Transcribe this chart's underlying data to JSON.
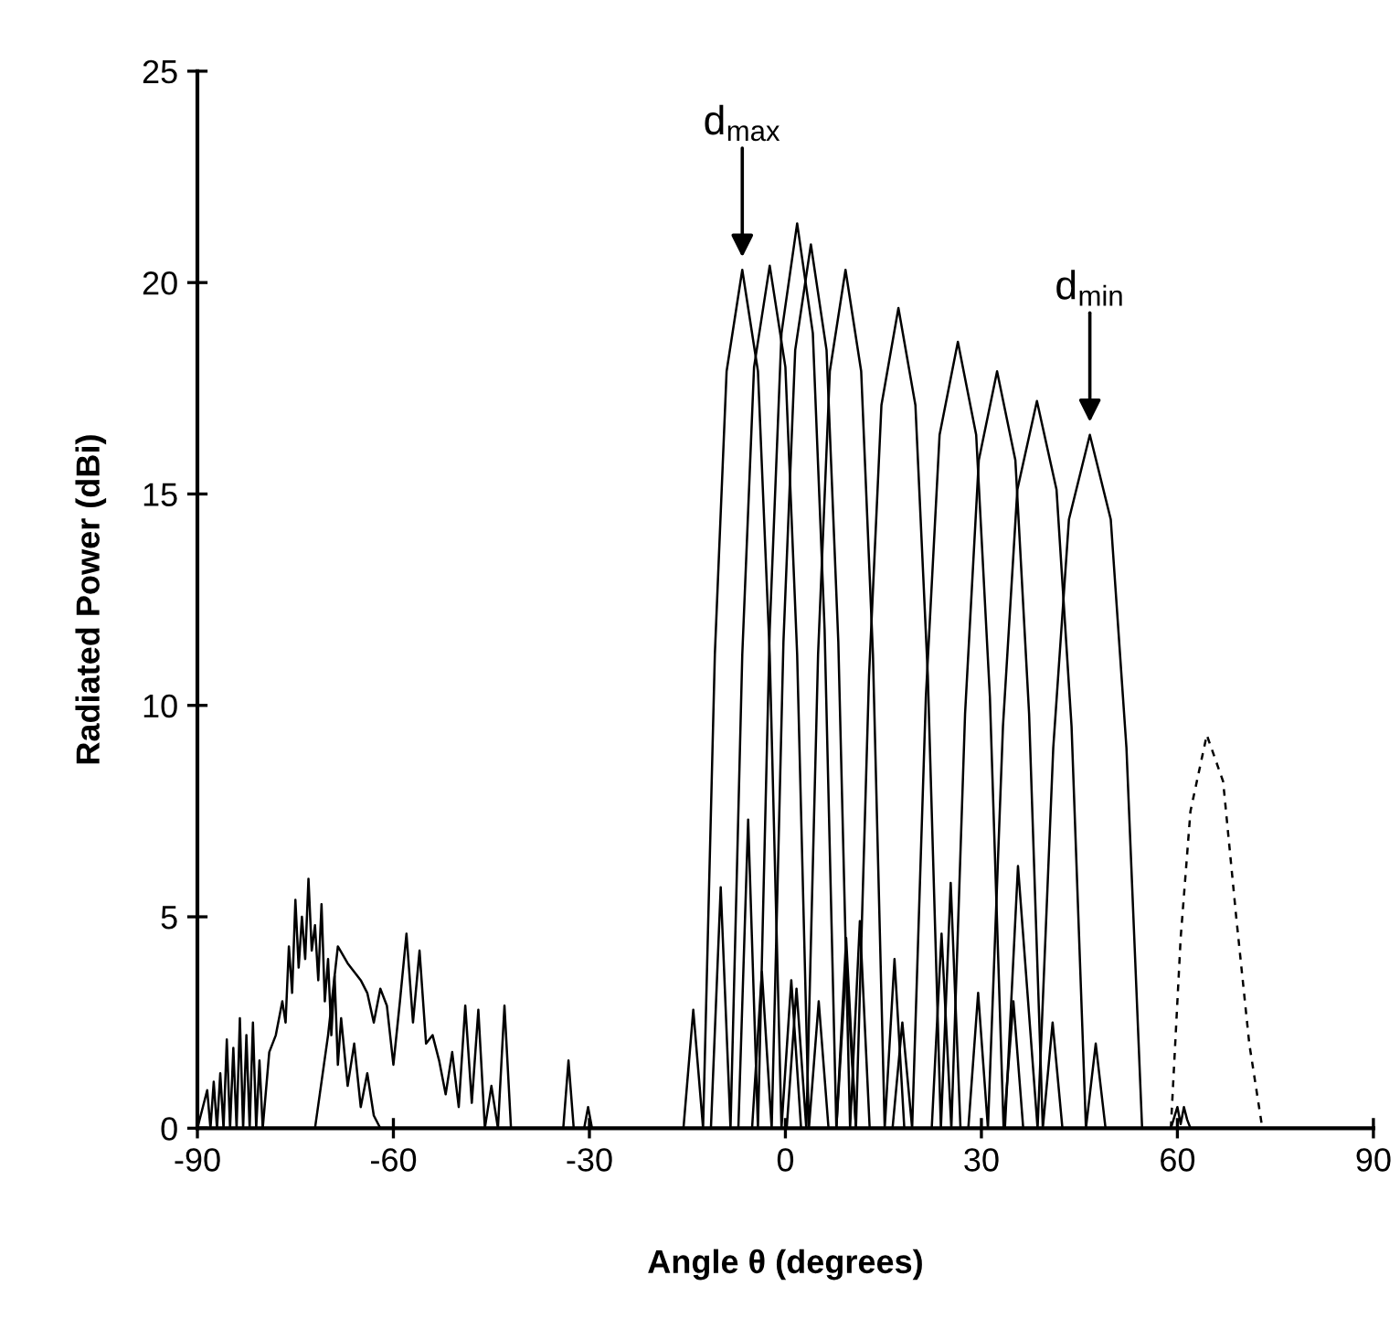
{
  "chart_data": {
    "type": "line",
    "xlabel": "Angle θ (degrees)",
    "ylabel": "Radiated Power (dBi)",
    "xlim": [
      -90,
      90
    ],
    "xticks": [
      -90,
      -60,
      -30,
      0,
      30,
      60,
      90
    ],
    "ylim": [
      0,
      25
    ],
    "yticks": [
      0,
      5,
      10,
      15,
      20,
      25
    ],
    "grid": false,
    "line_style": "solid",
    "annotations": [
      {
        "text": "d$_{max}$",
        "x": -6.6,
        "y": 20.3
      },
      {
        "text": "d$_{min}$",
        "x": 46.6,
        "y": 16.4
      }
    ],
    "series": [
      {
        "color": "#000000",
        "x": [
          -15.6,
          -14.1,
          -12.6,
          -10.8,
          -9.0,
          -6.6,
          -4.2,
          -2.4,
          -0.6,
          0.9,
          2.4
        ],
        "values": [
          0,
          2.8,
          0,
          11.2,
          17.9,
          20.3,
          17.9,
          11.2,
          0,
          3.5,
          0
        ]
      },
      {
        "color": "#000000",
        "x": [
          -11.4,
          -9.9,
          -8.4,
          -6.6,
          -4.8,
          -2.4,
          0.0,
          1.8,
          3.6,
          5.1,
          6.6
        ],
        "values": [
          0,
          5.7,
          0,
          11.2,
          18.0,
          20.4,
          18.0,
          11.2,
          0,
          3.0,
          0
        ]
      },
      {
        "color": "#000000",
        "x": [
          -7.2,
          -5.7,
          -4.2,
          -2.4,
          -0.6,
          1.8,
          4.2,
          6.0,
          7.8,
          9.3,
          10.8
        ],
        "values": [
          0,
          7.3,
          0,
          11.8,
          18.8,
          21.4,
          18.8,
          11.8,
          0,
          4.5,
          0
        ]
      },
      {
        "color": "#000000",
        "x": [
          -5.1,
          -3.6,
          -2.1,
          -0.3,
          1.5,
          3.9,
          6.3,
          8.1,
          9.9,
          11.4,
          12.9
        ],
        "values": [
          0,
          3.7,
          0,
          11.5,
          18.4,
          20.9,
          18.4,
          11.5,
          0,
          4.9,
          0
        ]
      },
      {
        "color": "#000000",
        "x": [
          0.2,
          1.7,
          3.2,
          5.0,
          6.8,
          9.2,
          11.6,
          13.4,
          15.2,
          16.7,
          18.2
        ],
        "values": [
          0,
          3.3,
          0,
          11.2,
          17.9,
          20.3,
          17.9,
          11.2,
          0,
          4.0,
          0
        ]
      },
      {
        "color": "#000000",
        "x": [
          7.8,
          9.3,
          10.8,
          12.8,
          14.7,
          17.3,
          19.9,
          21.8,
          23.8,
          25.3,
          26.8
        ],
        "values": [
          0,
          3.9,
          0,
          10.7,
          17.1,
          19.4,
          17.1,
          10.7,
          0,
          5.8,
          0
        ]
      },
      {
        "color": "#000000",
        "x": [
          16.4,
          17.9,
          19.4,
          21.5,
          23.6,
          26.4,
          29.2,
          31.3,
          33.4,
          34.9,
          36.4
        ],
        "values": [
          0,
          2.5,
          0,
          10.2,
          16.4,
          18.6,
          16.4,
          10.2,
          0,
          3.0,
          0
        ]
      },
      {
        "color": "#000000",
        "x": [
          22.4,
          23.9,
          25.4,
          27.5,
          29.6,
          32.4,
          35.2,
          37.3,
          39.4,
          40.9,
          42.4
        ],
        "values": [
          0,
          4.6,
          0,
          9.8,
          15.8,
          17.9,
          15.8,
          9.8,
          0,
          2.5,
          0
        ]
      },
      {
        "color": "#000000",
        "x": [
          28.0,
          29.5,
          31.0,
          33.3,
          35.5,
          38.5,
          41.5,
          43.8,
          46.0,
          47.5,
          49.0
        ],
        "values": [
          0,
          3.2,
          0,
          9.5,
          15.1,
          17.2,
          15.1,
          9.5,
          0,
          2.0,
          0
        ]
      },
      {
        "color": "#000000",
        "x": [
          33.6,
          35.6,
          38.6,
          41.0,
          43.4,
          46.6,
          49.8,
          52.2,
          54.6
        ],
        "values": [
          0,
          6.2,
          0,
          9.0,
          14.4,
          16.4,
          14.4,
          9.0,
          0
        ]
      },
      {
        "color": "#000000",
        "line_style": "dashed",
        "x": [
          59.0,
          60.5,
          62.0,
          64.5,
          67.0,
          69.0,
          71.0,
          73.0
        ],
        "values": [
          0,
          4.5,
          7.5,
          9.3,
          8.2,
          5.0,
          2.0,
          0
        ]
      },
      {
        "color": "#000000",
        "x": [
          -90,
          -88.5,
          -88,
          -87.5,
          -87,
          -86.5,
          -86,
          -85.5,
          -85,
          -84.5,
          -84,
          -83.5,
          -83,
          -82.5,
          -82,
          -81.5,
          -81,
          -80.5,
          -80
        ],
        "values": [
          0,
          0.9,
          0,
          1.1,
          0,
          1.3,
          0,
          2.1,
          0,
          1.9,
          0,
          2.6,
          0,
          2.2,
          0,
          2.5,
          0,
          1.6,
          0
        ]
      },
      {
        "color": "#000000",
        "x": [
          -80,
          -79,
          -78,
          -77,
          -76.5,
          -76,
          -75.5,
          -75,
          -74.5,
          -74,
          -73.5,
          -73,
          -72.5,
          -72,
          -71.5,
          -71,
          -70.5,
          -70,
          -69.5,
          -69,
          -68.5,
          -68,
          -67,
          -66,
          -65,
          -64,
          -63,
          -62
        ],
        "values": [
          0,
          1.8,
          2.2,
          3.0,
          2.5,
          4.3,
          3.2,
          5.4,
          3.8,
          5.0,
          4.0,
          5.9,
          4.2,
          4.8,
          3.5,
          5.3,
          3.0,
          4.0,
          2.2,
          3.6,
          1.5,
          2.6,
          1.0,
          2.0,
          0.5,
          1.3,
          0.3,
          0
        ]
      },
      {
        "color": "#000000",
        "x": [
          -72,
          -70,
          -68.5,
          -67,
          -66,
          -65,
          -64,
          -63,
          -62,
          -61,
          -60,
          -59,
          -58,
          -57,
          -56,
          -55,
          -54,
          -53,
          -52,
          -51,
          -50,
          -49,
          -48,
          -47,
          -46,
          -45,
          -44,
          -43,
          -42
        ],
        "values": [
          0,
          2.2,
          4.3,
          3.9,
          3.7,
          3.5,
          3.2,
          2.5,
          3.3,
          2.9,
          1.5,
          3.0,
          4.6,
          2.5,
          4.2,
          2.0,
          2.2,
          1.6,
          0.8,
          1.8,
          0.5,
          2.9,
          0.6,
          2.8,
          0,
          1.0,
          0,
          2.9,
          0
        ]
      },
      {
        "color": "#000000",
        "x": [
          -34,
          -33.2,
          -32.4,
          -30.8,
          -30.2,
          -29.6
        ],
        "values": [
          0,
          1.6,
          0,
          0,
          0.5,
          0
        ]
      },
      {
        "color": "#000000",
        "x": [
          59,
          60,
          60.5,
          61,
          61.5,
          62
        ],
        "values": [
          0,
          0.5,
          0.1,
          0.5,
          0.2,
          0
        ]
      }
    ]
  }
}
